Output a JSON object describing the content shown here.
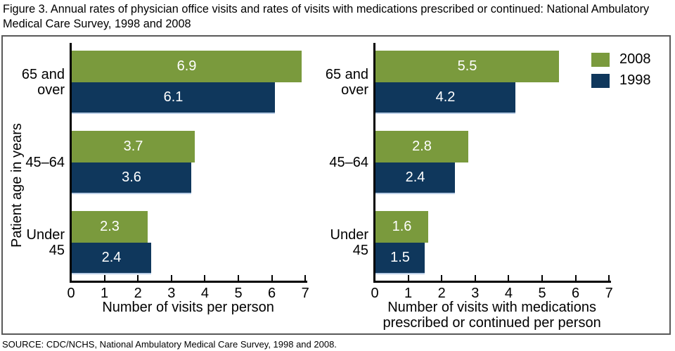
{
  "title": "Figure 3. Annual rates of physician office visits and rates of visits with medications prescribed or continued: National Ambulatory Medical Care Survey, 1998 and 2008",
  "source": "SOURCE: CDC/NCHS, National Ambulatory Medical Care Survey, 1998 and 2008.",
  "ylabel": "Patient age in years",
  "legend": {
    "position": "top-right",
    "entries": [
      {
        "label": "2008",
        "color": "#7A9A3D"
      },
      {
        "label": "1998",
        "color": "#0F375C"
      }
    ]
  },
  "colors": {
    "series_2008": "#7A9A3D",
    "series_1998": "#0F375C",
    "bar_label_text": "#FFFFFF",
    "navy_bar_bottom_edge": "#B9CDE5",
    "axis": "#000000",
    "frame_border": "#595959"
  },
  "chart_data": [
    {
      "type": "bar",
      "orientation": "horizontal",
      "title": "",
      "categories": [
        "65 and over",
        "45–64",
        "Under 45"
      ],
      "series": [
        {
          "name": "2008",
          "color": "#7A9A3D",
          "values": [
            6.9,
            3.7,
            2.3
          ]
        },
        {
          "name": "1998",
          "color": "#0F375C",
          "values": [
            6.1,
            3.6,
            2.4
          ]
        }
      ],
      "xlabel": "Number of visits per person",
      "ylabel": "Patient age in years",
      "xlim": [
        0,
        7
      ],
      "xticks": [
        0,
        1,
        2,
        3,
        4,
        5,
        6,
        7
      ],
      "grid": false,
      "bar_labels": true
    },
    {
      "type": "bar",
      "orientation": "horizontal",
      "title": "",
      "categories": [
        "65 and over",
        "45–64",
        "Under 45"
      ],
      "series": [
        {
          "name": "2008",
          "color": "#7A9A3D",
          "values": [
            5.5,
            2.8,
            1.6
          ]
        },
        {
          "name": "1998",
          "color": "#0F375C",
          "values": [
            4.2,
            2.4,
            1.5
          ]
        }
      ],
      "xlabel": "Number of visits with medications prescribed or continued per person",
      "ylabel": "Patient age in years",
      "xlim": [
        0,
        7
      ],
      "xticks": [
        0,
        1,
        2,
        3,
        4,
        5,
        6,
        7
      ],
      "grid": false,
      "bar_labels": true
    }
  ]
}
